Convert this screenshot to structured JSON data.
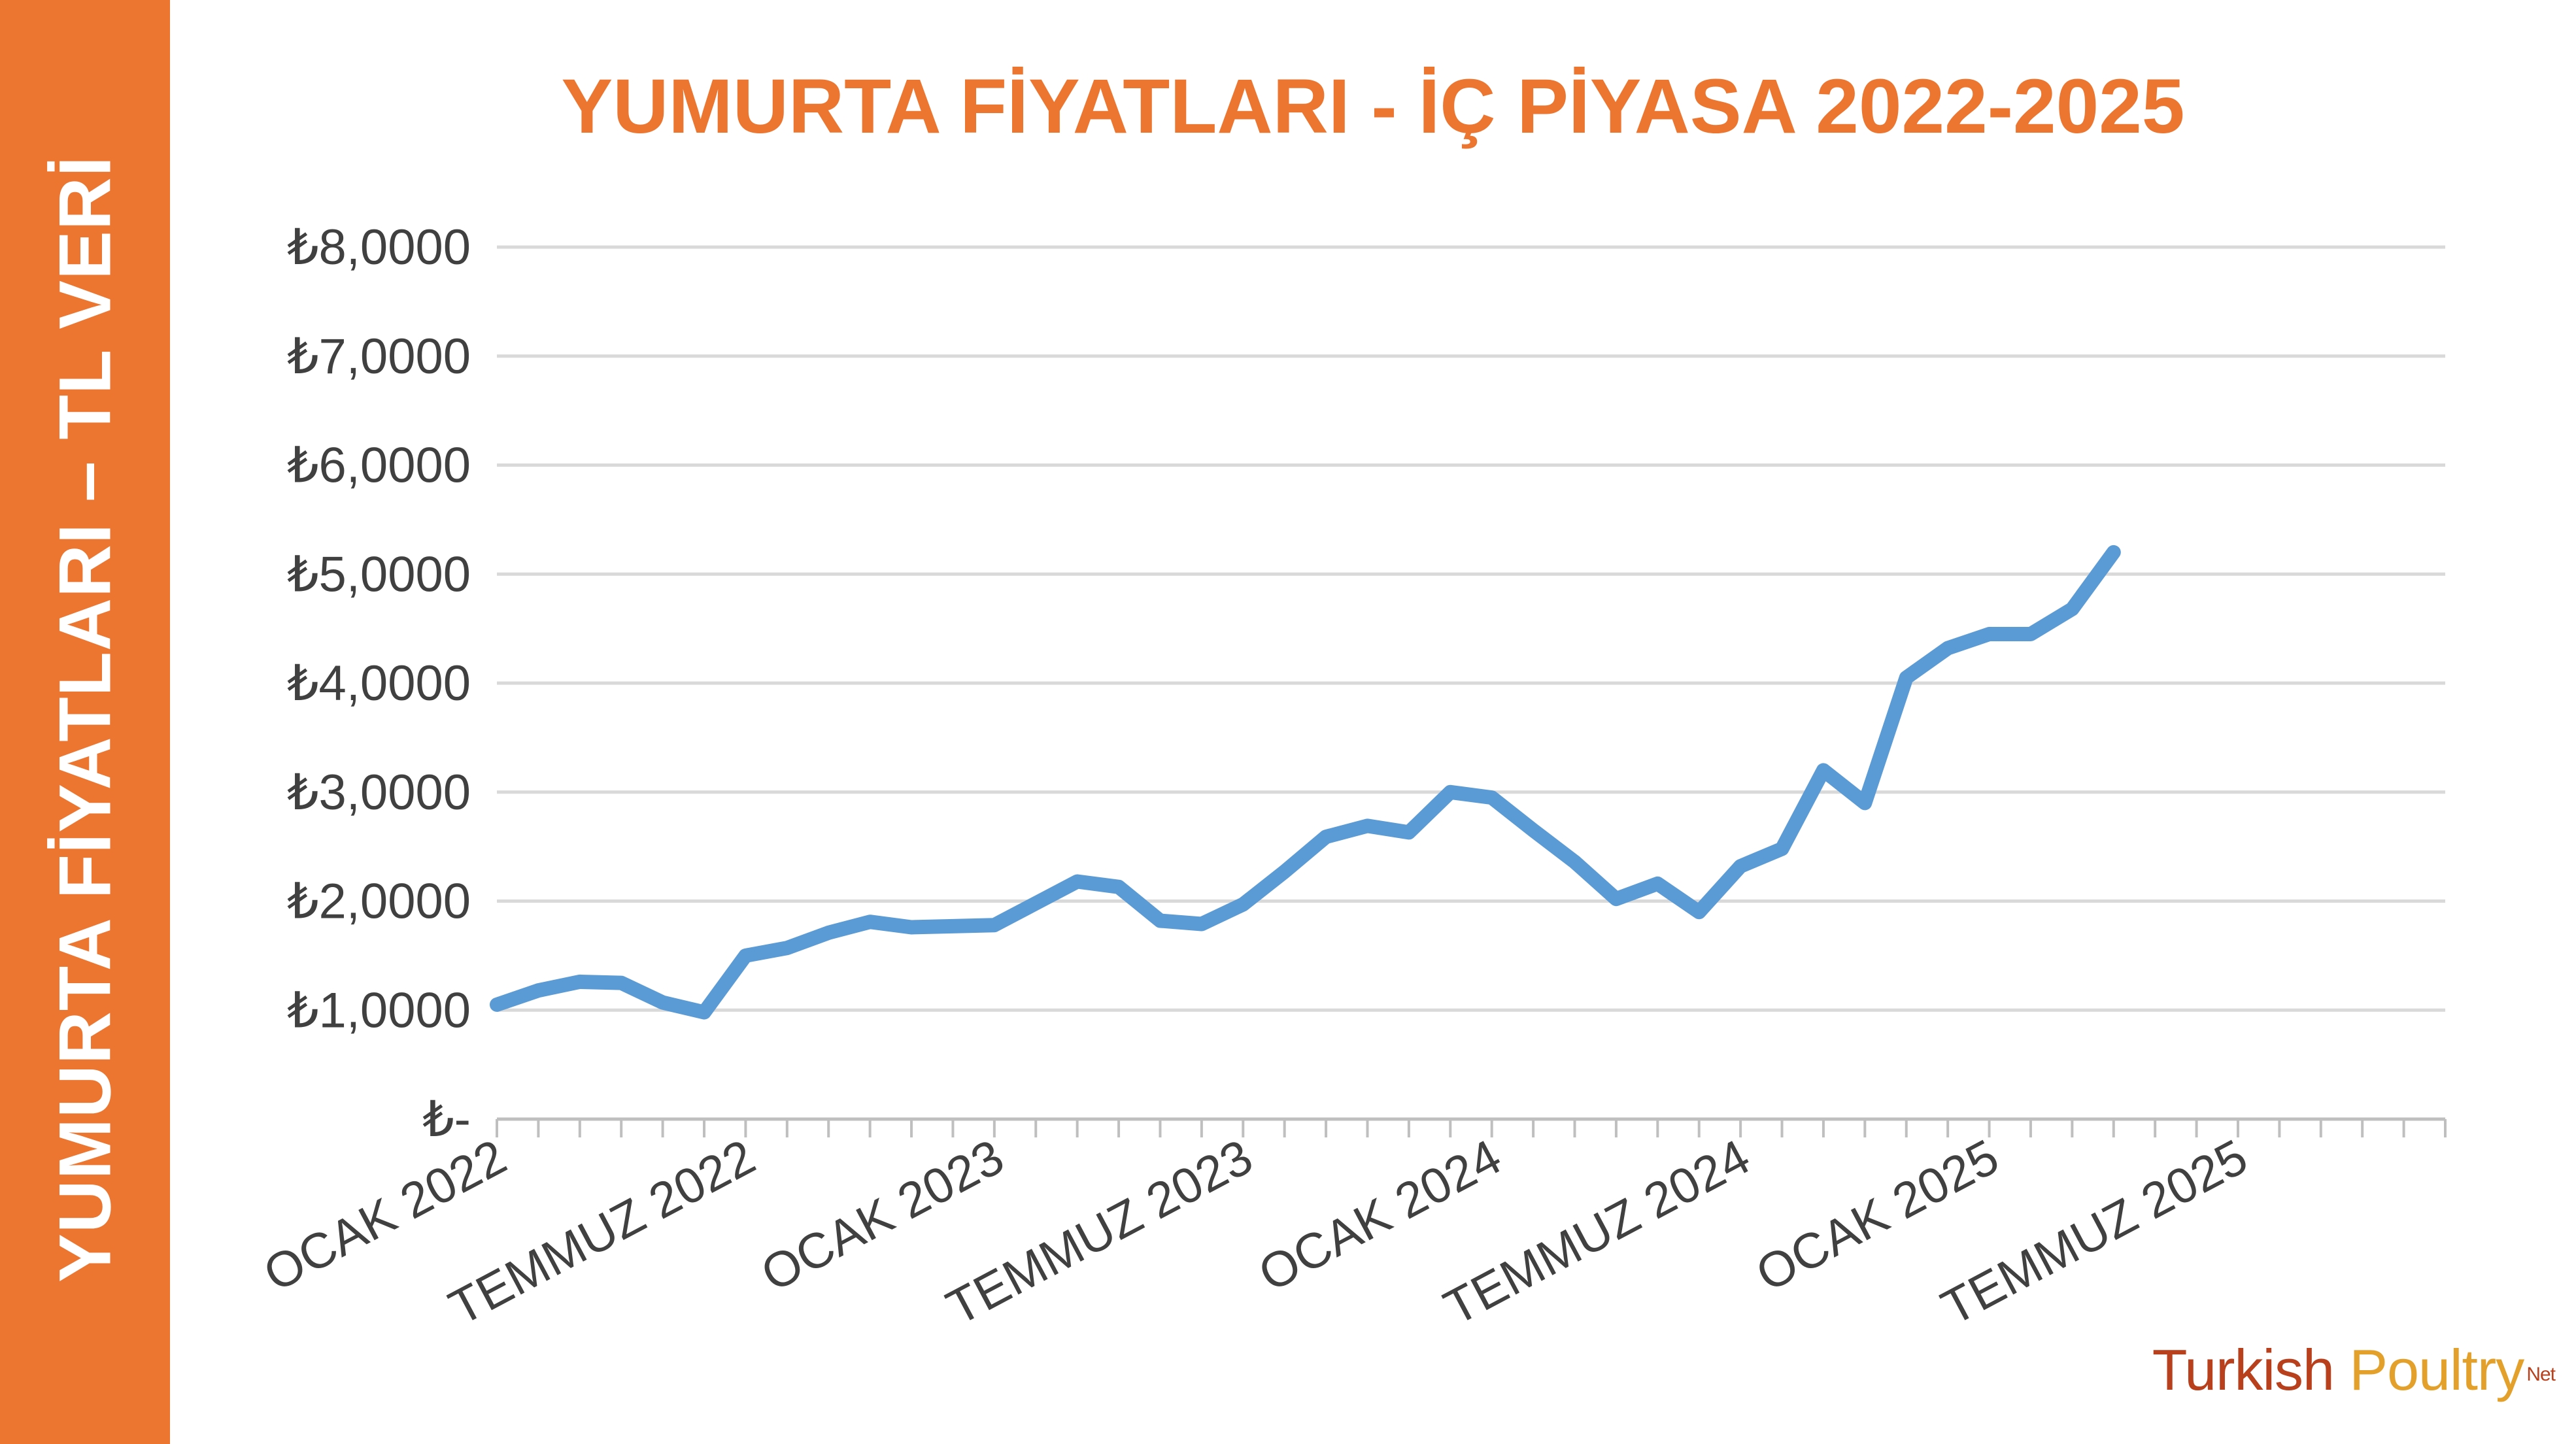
{
  "sidebar": {
    "title": "YUMURTA FİYATLARI – TL VERİ"
  },
  "logo": {
    "part1": "Turkish ",
    "part2": "Poultry",
    "part3": "Net"
  },
  "colors": {
    "accent": "#ec7530",
    "line": "#5b9bd5",
    "grid": "#d9d9d9",
    "axis": "#bfbfbf",
    "text": "#404040"
  },
  "chart_data": {
    "type": "line",
    "title": "YUMURTA FİYATLARI - İÇ PİYASA 2022-2025",
    "xlabel": "",
    "ylabel": "",
    "ylim": [
      0,
      8
    ],
    "grid": true,
    "legend": "none",
    "y_tick_labels": [
      "₺-",
      "₺1,0000",
      "₺2,0000",
      "₺3,0000",
      "₺4,0000",
      "₺5,0000",
      "₺6,0000",
      "₺7,0000",
      "₺8,0000"
    ],
    "y_tick_values": [
      0,
      1,
      2,
      3,
      4,
      5,
      6,
      7,
      8
    ],
    "x_range": [
      0,
      47
    ],
    "x_tick_labels": [
      "OCAK 2022",
      "TEMMUZ 2022",
      "OCAK 2023",
      "TEMMUZ 2023",
      "OCAK 2024",
      "TEMMUZ 2024",
      "OCAK 2025",
      "TEMMUZ 2025"
    ],
    "x_tick_positions": [
      0,
      6,
      12,
      18,
      24,
      30,
      36,
      42
    ],
    "series": [
      {
        "values": [
          1.05,
          1.18,
          1.26,
          1.25,
          1.07,
          0.98,
          1.5,
          1.57,
          1.71,
          1.81,
          1.76,
          1.77,
          1.78,
          1.98,
          2.18,
          2.13,
          1.82,
          1.79,
          1.97,
          2.27,
          2.59,
          2.69,
          2.63,
          3.0,
          2.95,
          2.65,
          2.36,
          2.02,
          2.16,
          1.9,
          2.32,
          2.48,
          3.2,
          2.9,
          4.05,
          4.32,
          4.45,
          4.45,
          4.68,
          5.2
        ]
      }
    ]
  }
}
